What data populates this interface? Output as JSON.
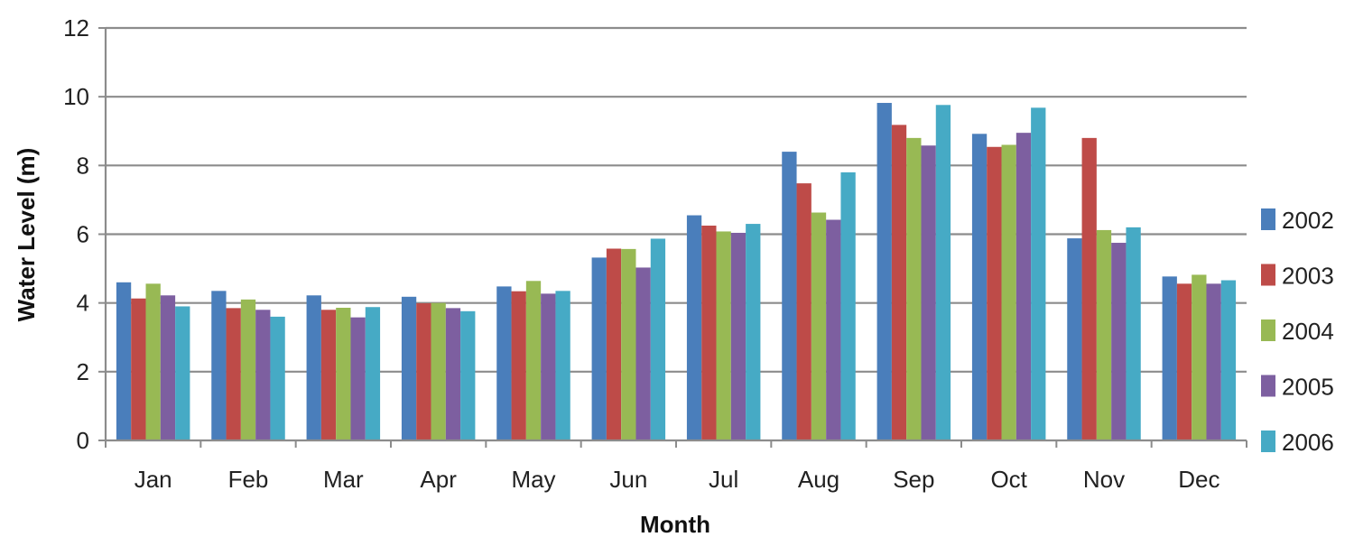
{
  "chart_data": {
    "type": "bar",
    "xlabel": "Month",
    "ylabel": "Water Level (m)",
    "ylim": [
      0,
      12
    ],
    "yticks": [
      "0",
      "2",
      "4",
      "6",
      "8",
      "10",
      "12"
    ],
    "grid": "horizontal",
    "legend_position": "right",
    "categories": [
      "Jan",
      "Feb",
      "Mar",
      "Apr",
      "May",
      "Jun",
      "Jul",
      "Aug",
      "Sep",
      "Oct",
      "Nov",
      "Dec"
    ],
    "series": [
      {
        "name": "2002",
        "color": "#4a7ebb",
        "values": [
          4.6,
          4.35,
          4.22,
          4.18,
          4.48,
          5.32,
          6.55,
          8.4,
          9.82,
          8.92,
          5.88,
          4.77
        ]
      },
      {
        "name": "2003",
        "color": "#be4b48",
        "values": [
          4.13,
          3.85,
          3.8,
          3.99,
          4.34,
          5.58,
          6.25,
          7.48,
          9.18,
          8.54,
          8.8,
          4.56
        ]
      },
      {
        "name": "2004",
        "color": "#98b954",
        "values": [
          4.56,
          4.1,
          3.86,
          4.0,
          4.64,
          5.57,
          6.08,
          6.63,
          8.8,
          8.6,
          6.12,
          4.82
        ]
      },
      {
        "name": "2005",
        "color": "#7d5fa0",
        "values": [
          4.22,
          3.8,
          3.58,
          3.85,
          4.27,
          5.03,
          6.04,
          6.42,
          8.58,
          8.95,
          5.75,
          4.56
        ]
      },
      {
        "name": "2006",
        "color": "#46aac5",
        "values": [
          3.9,
          3.6,
          3.88,
          3.76,
          4.35,
          5.87,
          6.3,
          7.8,
          9.76,
          9.68,
          6.2,
          4.66
        ]
      }
    ]
  }
}
